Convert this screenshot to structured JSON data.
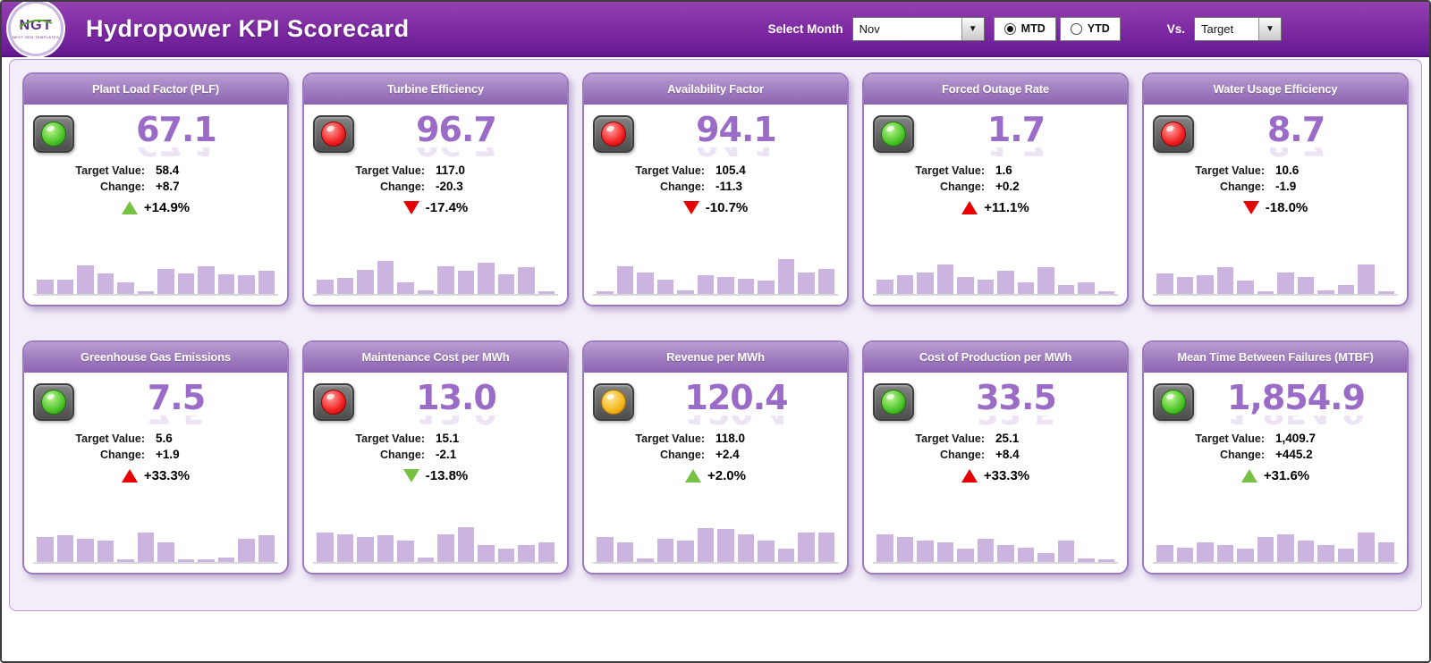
{
  "header": {
    "title": "Hydropower KPI Scorecard",
    "logo_text": "NGT",
    "logo_caption": "NEXT GEN TEMPLATES",
    "select_month_label": "Select Month",
    "month_value": "Nov",
    "mtd_label": "MTD",
    "ytd_label": "YTD",
    "selected_period": "MTD",
    "vs_label": "Vs.",
    "vs_value": "Target"
  },
  "labels": {
    "target": "Target Value:",
    "change": "Change:"
  },
  "colors": {
    "header_purple": "#7a27a0",
    "card_header_purple": "#a482c2",
    "value_purple": "#9a6cc8",
    "spark_bar": "#cbb4e0",
    "arrow_green": "#77c143",
    "arrow_red": "#e60000",
    "light_green": "#4fc62b",
    "light_red": "#f32424",
    "light_yellow": "#f6b81e"
  },
  "cards": [
    {
      "title": "Plant Load Factor (PLF)",
      "light": "green",
      "value": "67.1",
      "target": "58.4",
      "change": "+8.7",
      "pct": "+14.9%",
      "arrow": "up",
      "arrow_color": "green",
      "spark": [
        30,
        30,
        60,
        42,
        25,
        5,
        52,
        42,
        58,
        40,
        38,
        48
      ]
    },
    {
      "title": "Turbine Efficiency",
      "light": "red",
      "value": "96.7",
      "target": "117.0",
      "change": "-20.3",
      "pct": "-17.4%",
      "arrow": "down",
      "arrow_color": "red",
      "spark": [
        30,
        33,
        50,
        68,
        25,
        8,
        58,
        48,
        65,
        40,
        55,
        5
      ]
    },
    {
      "title": "Availability Factor",
      "light": "red",
      "value": "94.1",
      "target": "105.4",
      "change": "-11.3",
      "pct": "-10.7%",
      "arrow": "down",
      "arrow_color": "red",
      "spark": [
        5,
        58,
        45,
        30,
        8,
        38,
        35,
        32,
        28,
        72,
        45,
        52
      ]
    },
    {
      "title": "Forced Outage Rate",
      "light": "green",
      "value": "1.7",
      "target": "1.6",
      "change": "+0.2",
      "pct": "+11.1%",
      "arrow": "up",
      "arrow_color": "red",
      "spark": [
        30,
        38,
        45,
        62,
        35,
        30,
        48,
        25,
        55,
        18,
        25,
        6
      ]
    },
    {
      "title": "Water Usage Efficiency",
      "light": "red",
      "value": "8.7",
      "target": "10.6",
      "change": "-1.9",
      "pct": "-18.0%",
      "arrow": "down",
      "arrow_color": "red",
      "spark": [
        42,
        35,
        38,
        55,
        28,
        6,
        45,
        35,
        8,
        18,
        62,
        5
      ]
    },
    {
      "title": "Greenhouse Gas Emissions",
      "light": "green",
      "value": "7.5",
      "target": "5.6",
      "change": "+1.9",
      "pct": "+33.3%",
      "arrow": "up",
      "arrow_color": "red",
      "spark": [
        52,
        55,
        48,
        45,
        5,
        62,
        40,
        6,
        5,
        10,
        48,
        55
      ]
    },
    {
      "title": "Maintenance Cost per MWh",
      "light": "red",
      "value": "13.0",
      "target": "15.1",
      "change": "-2.1",
      "pct": "-13.8%",
      "arrow": "down",
      "arrow_color": "green",
      "spark": [
        62,
        58,
        52,
        55,
        45,
        10,
        58,
        72,
        35,
        28,
        35,
        40
      ]
    },
    {
      "title": "Revenue per MWh",
      "light": "yellow",
      "value": "120.4",
      "target": "118.0",
      "change": "+2.4",
      "pct": "+2.0%",
      "arrow": "up",
      "arrow_color": "green",
      "spark": [
        52,
        40,
        8,
        48,
        45,
        70,
        68,
        58,
        45,
        28,
        62,
        62
      ]
    },
    {
      "title": "Cost of Production per MWh",
      "light": "green",
      "value": "33.5",
      "target": "25.1",
      "change": "+8.4",
      "pct": "+33.3%",
      "arrow": "up",
      "arrow_color": "red",
      "spark": [
        58,
        52,
        45,
        40,
        28,
        48,
        35,
        30,
        18,
        45,
        8,
        5
      ]
    },
    {
      "title": "Mean Time Between Failures (MTBF)",
      "light": "green",
      "value": "1,854.9",
      "target": "1,409.7",
      "change": "+445.2",
      "pct": "+31.6%",
      "arrow": "up",
      "arrow_color": "green",
      "spark": [
        35,
        30,
        40,
        35,
        28,
        52,
        58,
        45,
        35,
        28,
        62,
        40
      ]
    }
  ]
}
